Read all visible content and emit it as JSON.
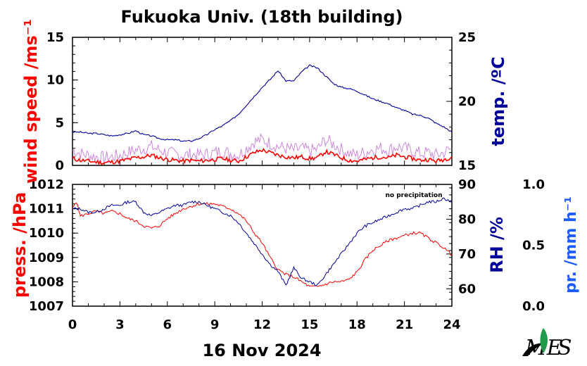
{
  "title": "Fukuoka Univ. (18th building)",
  "date_label": "16 Nov 2024",
  "note": "no precipitation",
  "colors": {
    "wind": "#ff0000",
    "wind_gust": "#cc88dd",
    "temp": "#00009a",
    "press": "#ff0000",
    "rh": "#00009a",
    "precip": "#1a5cff",
    "axis": "#000000",
    "logo": "#1f9a4a"
  },
  "chart_data": [
    {
      "type": "line",
      "panel": "top",
      "x_label": "",
      "xlim": [
        0,
        24
      ],
      "x_ticks": [
        "0",
        "3",
        "6",
        "9",
        "12",
        "15",
        "18",
        "21",
        "24"
      ],
      "left_axis": {
        "label": "wind speed /ms⁻¹",
        "lim": [
          0,
          15
        ],
        "ticks": [
          "0",
          "5",
          "10",
          "15"
        ]
      },
      "right_axis": {
        "label": "temp. /ºC",
        "lim": [
          15,
          25
        ],
        "ticks": [
          "15",
          "20",
          "25"
        ]
      },
      "series": [
        {
          "axis": "left",
          "x": [
            0,
            0.5,
            1,
            1.5,
            2,
            2.5,
            3,
            3.5,
            4,
            4.5,
            5,
            5.5,
            6,
            6.5,
            7,
            7.5,
            8,
            8.5,
            9,
            9.5,
            10,
            10.5,
            11,
            11.5,
            12,
            12.5,
            13,
            13.5,
            14,
            14.5,
            15,
            15.5,
            16,
            16.5,
            17,
            17.5,
            18,
            18.5,
            19,
            19.5,
            20,
            20.5,
            21,
            21.5,
            22,
            22.5,
            23,
            23.5,
            24
          ],
          "y": [
            0.8,
            0.6,
            0.5,
            0.4,
            0.3,
            0.4,
            0.5,
            0.7,
            0.9,
            1.0,
            1.2,
            0.9,
            0.7,
            0.6,
            0.5,
            0.6,
            0.5,
            0.6,
            0.7,
            0.8,
            0.6,
            0.5,
            1.0,
            1.5,
            1.8,
            1.5,
            1.2,
            1.0,
            0.9,
            1.0,
            0.8,
            0.9,
            1.6,
            1.3,
            0.9,
            0.6,
            0.5,
            0.7,
            0.9,
            1.0,
            0.9,
            1.2,
            1.0,
            0.8,
            0.6,
            0.7,
            0.5,
            0.7,
            1.0
          ]
        },
        {
          "axis": "left",
          "x": [
            0,
            0.5,
            1,
            1.5,
            2,
            2.5,
            3,
            3.5,
            4,
            4.5,
            5,
            5.5,
            6,
            6.5,
            7,
            7.5,
            8,
            8.5,
            9,
            9.5,
            10,
            10.5,
            11,
            11.5,
            12,
            12.5,
            13,
            13.5,
            14,
            14.5,
            15,
            15.5,
            16,
            16.5,
            17,
            17.5,
            18,
            18.5,
            19,
            19.5,
            20,
            20.5,
            21,
            21.5,
            22,
            22.5,
            23,
            23.5,
            24
          ],
          "y": [
            1.8,
            1.4,
            1.2,
            1.0,
            0.9,
            1.0,
            1.2,
            1.5,
            1.8,
            2.0,
            2.2,
            1.8,
            1.5,
            1.3,
            1.2,
            1.3,
            1.2,
            1.3,
            1.5,
            1.7,
            1.4,
            1.2,
            2.0,
            2.8,
            3.0,
            2.6,
            2.2,
            2.0,
            1.8,
            2.0,
            1.7,
            1.9,
            3.0,
            2.5,
            1.9,
            1.4,
            1.2,
            1.5,
            1.9,
            2.0,
            1.8,
            2.2,
            2.0,
            1.7,
            1.4,
            1.5,
            1.2,
            1.5,
            2.0
          ]
        },
        {
          "axis": "right",
          "x": [
            0,
            0.5,
            1,
            1.5,
            2,
            2.5,
            3,
            3.5,
            4,
            4.5,
            5,
            5.5,
            6,
            6.5,
            7,
            7.5,
            8,
            8.5,
            9,
            9.5,
            10,
            10.5,
            11,
            11.5,
            12,
            12.5,
            13,
            13.5,
            14,
            14.5,
            15,
            15.5,
            16,
            16.5,
            17,
            17.5,
            18,
            18.5,
            19,
            19.5,
            20,
            20.5,
            21,
            21.5,
            22,
            22.5,
            23,
            23.5,
            24
          ],
          "y": [
            17.6,
            17.6,
            17.5,
            17.5,
            17.4,
            17.3,
            17.4,
            17.5,
            17.7,
            17.4,
            17.3,
            17.1,
            17.0,
            17.0,
            16.9,
            16.9,
            17.1,
            17.4,
            17.8,
            18.1,
            18.5,
            19.0,
            19.7,
            20.4,
            21.1,
            21.7,
            22.4,
            21.6,
            21.6,
            22.3,
            22.8,
            22.6,
            22.0,
            21.4,
            21.1,
            21.0,
            20.8,
            20.5,
            20.2,
            20.0,
            19.8,
            19.5,
            19.3,
            19.0,
            18.9,
            18.7,
            18.3,
            18.0,
            17.6
          ]
        }
      ]
    },
    {
      "type": "line",
      "panel": "bottom",
      "x_label": "",
      "xlim": [
        0,
        24
      ],
      "x_ticks": [
        "0",
        "3",
        "6",
        "9",
        "12",
        "15",
        "18",
        "21",
        "24"
      ],
      "left_axis": {
        "label": "press. /hPa",
        "lim": [
          1007,
          1012
        ],
        "ticks": [
          "1007",
          "1008",
          "1009",
          "1010",
          "1011",
          "1012"
        ]
      },
      "right_axis": {
        "label": "RH /%",
        "lim": [
          55,
          90
        ],
        "ticks": [
          "60",
          "70",
          "80",
          "90"
        ]
      },
      "far_right_axis": {
        "label": "pr. /mm h⁻¹",
        "lim": [
          0,
          1
        ],
        "ticks": [
          "0.0",
          "0.5",
          "1.0"
        ]
      },
      "series": [
        {
          "axis": "left",
          "x": [
            0,
            0.25,
            0.5,
            1,
            1.5,
            2,
            2.5,
            3,
            3.5,
            4,
            4.5,
            5,
            5.5,
            6,
            6.5,
            7,
            7.5,
            8,
            8.5,
            9,
            9.5,
            10,
            10.5,
            11,
            11.5,
            12,
            12.5,
            13,
            13.5,
            14,
            14.5,
            15,
            15.5,
            16,
            16.5,
            17,
            17.5,
            18,
            18.5,
            19,
            19.5,
            20,
            20.5,
            21,
            21.5,
            22,
            22.5,
            23,
            23.5,
            24
          ],
          "y": [
            1011.0,
            1011.3,
            1010.7,
            1010.8,
            1010.9,
            1010.8,
            1010.9,
            1010.8,
            1010.6,
            1010.5,
            1010.3,
            1010.2,
            1010.3,
            1010.6,
            1010.8,
            1011.0,
            1011.1,
            1011.2,
            1011.2,
            1011.2,
            1011.1,
            1011.0,
            1010.8,
            1010.5,
            1010.0,
            1009.6,
            1009.0,
            1008.5,
            1008.3,
            1008.2,
            1008.0,
            1007.8,
            1007.8,
            1007.9,
            1008.0,
            1008.0,
            1008.1,
            1008.4,
            1008.9,
            1009.3,
            1009.5,
            1009.7,
            1009.8,
            1009.9,
            1010.0,
            1010.0,
            1009.8,
            1009.6,
            1009.4,
            1009.1
          ]
        },
        {
          "axis": "right",
          "x": [
            0,
            0.5,
            1,
            1.5,
            2,
            2.5,
            3,
            3.5,
            4,
            4.5,
            5,
            5.5,
            6,
            6.5,
            7,
            7.5,
            8,
            8.5,
            9,
            9.5,
            10,
            10.5,
            11,
            11.5,
            12,
            12.5,
            13,
            13.5,
            14,
            14.5,
            15,
            15.5,
            16,
            16.5,
            17,
            17.5,
            18,
            18.5,
            19,
            19.5,
            20,
            20.5,
            21,
            21.5,
            22,
            22.5,
            23,
            23.5,
            24
          ],
          "y": [
            83,
            83,
            82,
            82,
            83,
            84,
            84,
            85,
            85,
            82,
            81,
            82,
            83,
            84,
            84,
            85,
            85,
            84,
            83,
            82,
            81,
            79,
            76,
            73,
            70,
            67,
            65,
            61,
            66,
            63,
            62,
            61,
            64,
            67,
            70,
            73,
            76,
            78,
            79,
            80,
            81,
            82,
            83,
            83,
            84,
            85,
            85,
            86,
            85
          ]
        },
        {
          "axis": "far_right",
          "x": [],
          "y": []
        }
      ]
    }
  ]
}
